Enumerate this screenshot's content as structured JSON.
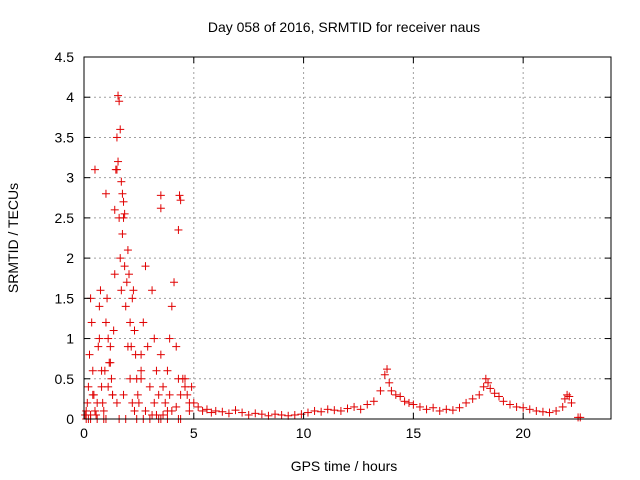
{
  "chart_data": {
    "type": "scatter",
    "title": "Day 058 of 2016, SRMTID for receiver naus",
    "xlabel": "GPS time / hours",
    "ylabel": "SRMTID / TECUs",
    "xlim": [
      0,
      24
    ],
    "ylim": [
      0,
      4.5
    ],
    "xticks": [
      0,
      5,
      10,
      15,
      20
    ],
    "yticks": [
      0,
      0.5,
      1,
      1.5,
      2,
      2.5,
      3,
      3.5,
      4,
      4.5
    ],
    "xtick_labels": [
      "0",
      "5",
      "10",
      "15",
      "20"
    ],
    "ytick_labels": [
      "0",
      "0.5",
      "1",
      "1.5",
      "2",
      "2.5",
      "3",
      "3.5",
      "4",
      "4.5"
    ],
    "grid": true,
    "marker": "+",
    "color": "#e00000",
    "series": [
      {
        "name": "SRMTID",
        "x": [
          0.05,
          0.1,
          0.15,
          0.2,
          0.25,
          0.3,
          0.35,
          0.4,
          0.45,
          0.5,
          0.55,
          0.6,
          0.65,
          0.7,
          0.75,
          0.8,
          0.85,
          0.9,
          0.95,
          1.0,
          1.05,
          1.1,
          1.15,
          1.2,
          1.25,
          1.3,
          1.35,
          1.4,
          1.45,
          1.5,
          1.55,
          1.6,
          1.65,
          1.7,
          1.75,
          1.8,
          1.85,
          1.9,
          1.95,
          2.0,
          2.05,
          2.1,
          2.15,
          2.2,
          2.25,
          2.3,
          2.35,
          2.4,
          2.45,
          2.5,
          2.6,
          2.7,
          2.8,
          2.9,
          3.0,
          3.1,
          3.2,
          3.3,
          3.4,
          3.5,
          3.6,
          3.7,
          3.8,
          3.9,
          4.0,
          4.1,
          4.2,
          4.3,
          4.4,
          4.5,
          4.6,
          4.7,
          4.8,
          4.9,
          5.0,
          5.2,
          5.4,
          5.6,
          5.8,
          6.0,
          6.3,
          6.6,
          6.9,
          7.2,
          7.5,
          7.8,
          8.1,
          8.4,
          8.7,
          9.0,
          9.3,
          9.6,
          9.9,
          10.2,
          10.5,
          10.8,
          11.1,
          11.4,
          11.7,
          12.0,
          12.3,
          12.6,
          12.9,
          13.2,
          13.5,
          13.7,
          13.8,
          13.9,
          14.0,
          14.2,
          14.4,
          14.6,
          14.8,
          15.0,
          15.3,
          15.6,
          15.9,
          16.2,
          16.5,
          16.8,
          17.1,
          17.4,
          17.7,
          18.0,
          18.2,
          18.3,
          18.4,
          18.5,
          18.7,
          18.9,
          19.1,
          19.4,
          19.7,
          20.0,
          20.3,
          20.6,
          20.9,
          21.2,
          21.5,
          21.8,
          21.9,
          22.0,
          22.1,
          22.2,
          22.5,
          22.6,
          0.2,
          0.4,
          0.6,
          0.8,
          1.0,
          1.2,
          1.4,
          1.6,
          1.8,
          2.0,
          2.2,
          2.4,
          2.6,
          2.8,
          3.0,
          3.2,
          3.4,
          3.6,
          3.8,
          4.0,
          4.2,
          4.4,
          0.3,
          0.7,
          1.1,
          1.5,
          1.9,
          2.3,
          2.7,
          3.1,
          3.5,
          3.9,
          4.3,
          1.55,
          1.6,
          1.65,
          1.5,
          1.7,
          1.75,
          1.8,
          1.85,
          0.5,
          1.0,
          3.5,
          3.5,
          4.35,
          4.4,
          4.3,
          0.1,
          0.3,
          0.9,
          1.3,
          2.1,
          2.6,
          3.3,
          3.8,
          4.6,
          4.8
        ],
        "y": [
          0.05,
          0.1,
          0.2,
          0.4,
          0.8,
          1.5,
          1.2,
          0.6,
          0.3,
          0.1,
          0.05,
          0.2,
          0.9,
          1.4,
          1.6,
          0.4,
          0.2,
          0.1,
          0.6,
          1.2,
          1.5,
          1.0,
          0.7,
          0.9,
          0.5,
          0.3,
          1.1,
          2.6,
          3.1,
          3.5,
          3.2,
          2.5,
          2.0,
          1.6,
          2.3,
          2.5,
          1.9,
          1.4,
          1.7,
          2.1,
          1.8,
          1.2,
          0.9,
          1.5,
          1.6,
          1.1,
          0.8,
          0.5,
          0.3,
          0.2,
          0.6,
          1.2,
          1.9,
          0.9,
          0.4,
          1.6,
          1.0,
          0.6,
          0.3,
          0.8,
          0.4,
          0.2,
          0.6,
          1.0,
          1.4,
          1.7,
          0.9,
          0.5,
          0.3,
          0.5,
          0.4,
          0.3,
          0.2,
          0.4,
          0.2,
          0.15,
          0.1,
          0.12,
          0.08,
          0.1,
          0.09,
          0.07,
          0.11,
          0.08,
          0.05,
          0.07,
          0.06,
          0.04,
          0.06,
          0.05,
          0.04,
          0.05,
          0.06,
          0.08,
          0.1,
          0.09,
          0.12,
          0.11,
          0.1,
          0.13,
          0.15,
          0.12,
          0.18,
          0.22,
          0.35,
          0.55,
          0.62,
          0.45,
          0.35,
          0.3,
          0.28,
          0.22,
          0.2,
          0.18,
          0.15,
          0.12,
          0.14,
          0.1,
          0.12,
          0.11,
          0.14,
          0.2,
          0.25,
          0.3,
          0.4,
          0.5,
          0.45,
          0.38,
          0.32,
          0.28,
          0.22,
          0.18,
          0.15,
          0.14,
          0.12,
          0.1,
          0.09,
          0.08,
          0.1,
          0.15,
          0.25,
          0.3,
          0.28,
          0.2,
          0.02,
          0.02,
          0.0,
          0.3,
          0.0,
          0.6,
          0.0,
          0.7,
          1.8,
          0.0,
          0.3,
          0.9,
          0.2,
          0.0,
          0.5,
          0.1,
          0.0,
          0.2,
          0.0,
          0.05,
          0.0,
          0.1,
          0.15,
          0.0,
          0.0,
          1.0,
          0.4,
          0.2,
          0.0,
          0.1,
          0.0,
          0.05,
          0.0,
          0.3,
          0.0,
          4.02,
          3.95,
          3.6,
          3.1,
          2.95,
          2.8,
          2.7,
          2.55,
          3.1,
          2.8,
          2.78,
          2.62,
          2.78,
          2.72,
          2.35,
          0.0,
          0.05,
          0.0,
          0.3,
          0.5,
          0.8,
          0.05,
          0.1,
          0.5,
          0.1
        ]
      }
    ]
  }
}
